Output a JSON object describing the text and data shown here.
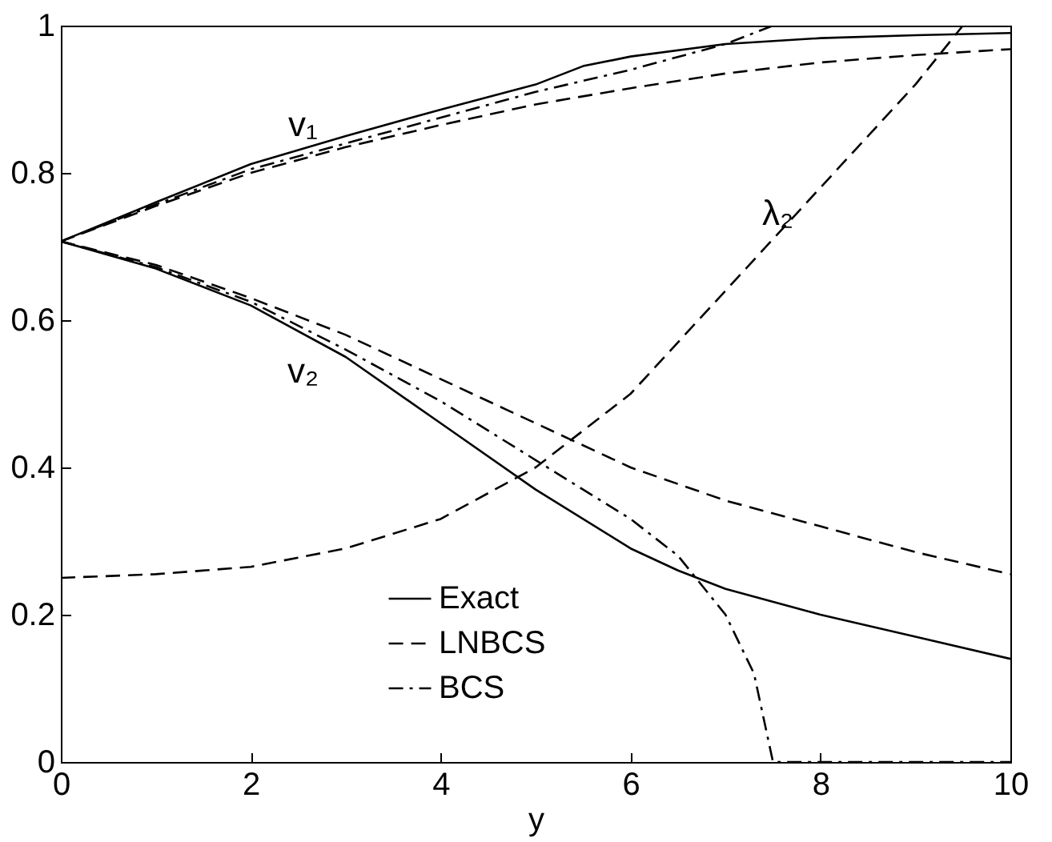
{
  "chart_data": {
    "type": "line",
    "xlabel": "y",
    "xlim": [
      0,
      10
    ],
    "ylim": [
      0,
      1
    ],
    "xticks": [
      0,
      2,
      4,
      6,
      8,
      10
    ],
    "yticks": [
      0,
      0.2,
      0.4,
      0.6,
      0.8,
      1
    ],
    "grid": false,
    "legend": "bottom",
    "marker": "none",
    "series": [
      {
        "name": "Exact",
        "color": "#000000",
        "line_style": "solid",
        "x": [
          0,
          1,
          2,
          3,
          4,
          5,
          5.5,
          6,
          7,
          8,
          9,
          10
        ],
        "values": [
          0.707,
          0.76,
          0.812,
          0.85,
          0.886,
          0.92,
          0.945,
          0.958,
          0.975,
          0.983,
          0.987,
          0.99
        ]
      },
      {
        "name": "LNBCS",
        "color": "#000000",
        "line_style": "dashed",
        "x": [
          0,
          1,
          2,
          3,
          4,
          5,
          6,
          7,
          8,
          9,
          10
        ],
        "values": [
          0.707,
          0.755,
          0.8,
          0.835,
          0.865,
          0.893,
          0.915,
          0.935,
          0.95,
          0.96,
          0.968
        ]
      },
      {
        "name": "BCS",
        "color": "#000000",
        "line_style": "dashdot",
        "x": [
          0,
          1,
          2,
          3,
          4,
          5,
          6,
          7,
          7.5,
          8,
          9,
          10
        ],
        "values": [
          0.707,
          0.757,
          0.805,
          0.84,
          0.875,
          0.91,
          0.94,
          0.975,
          1,
          1,
          1,
          1
        ]
      },
      {
        "color": "#000000",
        "line_style": "solid",
        "x": [
          0,
          1,
          2,
          3,
          4,
          5,
          6,
          6.5,
          7,
          8,
          9,
          10
        ],
        "values": [
          0.707,
          0.67,
          0.62,
          0.55,
          0.46,
          0.37,
          0.29,
          0.26,
          0.235,
          0.2,
          0.17,
          0.14
        ]
      },
      {
        "color": "#000000",
        "line_style": "dashed",
        "x": [
          0,
          1,
          2,
          3,
          4,
          5,
          6,
          7,
          8,
          9,
          10
        ],
        "values": [
          0.707,
          0.675,
          0.63,
          0.58,
          0.52,
          0.46,
          0.4,
          0.355,
          0.32,
          0.285,
          0.255
        ]
      },
      {
        "color": "#000000",
        "line_style": "dashdot",
        "x": [
          0,
          1,
          2,
          3,
          4,
          5,
          6,
          6.5,
          7,
          7.3,
          7.5,
          8,
          9,
          10
        ],
        "values": [
          0.707,
          0.672,
          0.625,
          0.56,
          0.49,
          0.41,
          0.33,
          0.28,
          0.2,
          0.12,
          0,
          0,
          0,
          0
        ]
      },
      {
        "color": "#000000",
        "line_style": "dashed",
        "x": [
          0,
          1,
          2,
          3,
          4,
          5,
          6,
          7,
          8,
          9,
          9.5
        ],
        "values": [
          0.25,
          0.255,
          0.265,
          0.29,
          0.33,
          0.4,
          0.5,
          0.64,
          0.78,
          0.92,
          1
        ]
      }
    ],
    "annotations": [
      "v₁",
      "v₂",
      "λ₂"
    ]
  }
}
